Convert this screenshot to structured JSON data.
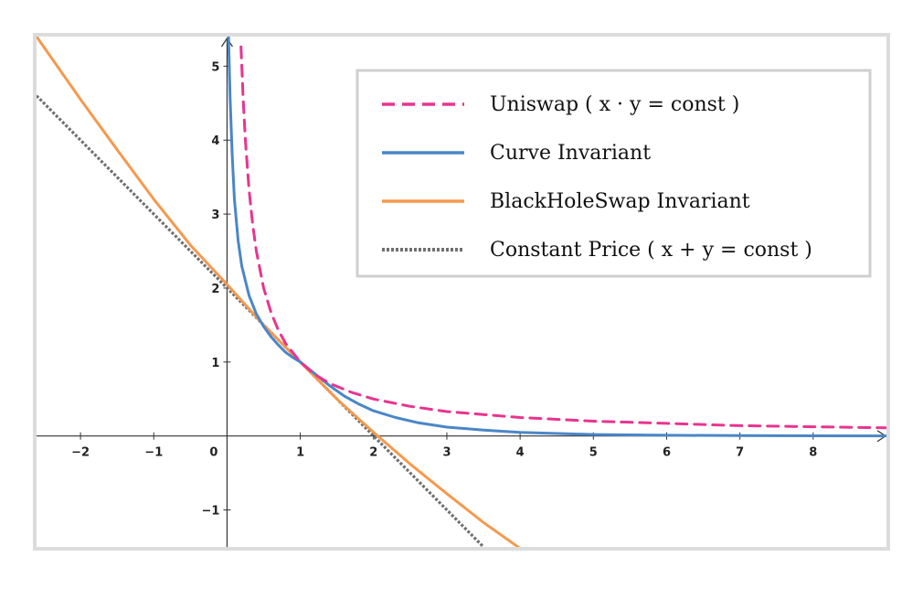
{
  "chart_data": {
    "type": "line",
    "title": "",
    "xlabel": "",
    "ylabel": "",
    "xlim": [
      -2.6,
      9.0
    ],
    "ylim": [
      -1.5,
      5.4
    ],
    "x_ticks": [
      -2,
      -1,
      1,
      2,
      3,
      4,
      5,
      6,
      7,
      8
    ],
    "y_ticks": [
      -1,
      1,
      2,
      3,
      4,
      5
    ],
    "origin_label": "0",
    "grid": false,
    "legend_position": "top-right",
    "series": [
      {
        "name": "Uniswap ( x · y = const )",
        "style": "dashed",
        "color": "#e8348f",
        "x": [
          0.19,
          0.22,
          0.25,
          0.3,
          0.35,
          0.4,
          0.5,
          0.6,
          0.7,
          0.8,
          1.0,
          1.2,
          1.4,
          1.7,
          2.0,
          2.5,
          3.0,
          4.0,
          5.0,
          6.0,
          7.0,
          8.0,
          9.0
        ],
        "values": [
          5.26,
          4.55,
          4.0,
          3.33,
          2.86,
          2.5,
          2.0,
          1.67,
          1.43,
          1.25,
          1.0,
          0.83,
          0.71,
          0.59,
          0.5,
          0.4,
          0.33,
          0.25,
          0.2,
          0.17,
          0.14,
          0.125,
          0.11
        ]
      },
      {
        "name": "Curve Invariant",
        "style": "solid",
        "color": "#4a86c8",
        "x": [
          0.02,
          0.04,
          0.07,
          0.1,
          0.15,
          0.2,
          0.3,
          0.4,
          0.5,
          0.6,
          0.7,
          0.8,
          0.9,
          1.0,
          1.1,
          1.2,
          1.4,
          1.6,
          1.8,
          2.0,
          2.3,
          2.6,
          3.0,
          3.5,
          4.0,
          5.0,
          6.0,
          7.0,
          8.0,
          9.0
        ],
        "values": [
          5.4,
          4.6,
          3.8,
          3.2,
          2.65,
          2.3,
          1.9,
          1.65,
          1.48,
          1.34,
          1.23,
          1.13,
          1.06,
          1.0,
          0.92,
          0.84,
          0.68,
          0.54,
          0.43,
          0.34,
          0.25,
          0.18,
          0.12,
          0.08,
          0.05,
          0.02,
          0.01,
          0.005,
          0.002,
          0.001
        ]
      },
      {
        "name": "BlackHoleSwap Invariant",
        "style": "solid",
        "color": "#f5994d",
        "x": [
          -2.6,
          -2.0,
          -1.5,
          -1.0,
          -0.5,
          0.0,
          0.5,
          1.0,
          1.5,
          2.0,
          2.5,
          3.0,
          3.5,
          4.0
        ],
        "values": [
          5.4,
          4.55,
          3.87,
          3.2,
          2.58,
          2.05,
          1.5,
          1.0,
          0.5,
          0.05,
          -0.38,
          -0.78,
          -1.17,
          -1.52
        ]
      },
      {
        "name": "Constant Price ( x + y = const )",
        "style": "dotted",
        "color": "#707070",
        "x": [
          -2.6,
          3.5
        ],
        "values": [
          4.6,
          -1.5
        ]
      }
    ]
  }
}
